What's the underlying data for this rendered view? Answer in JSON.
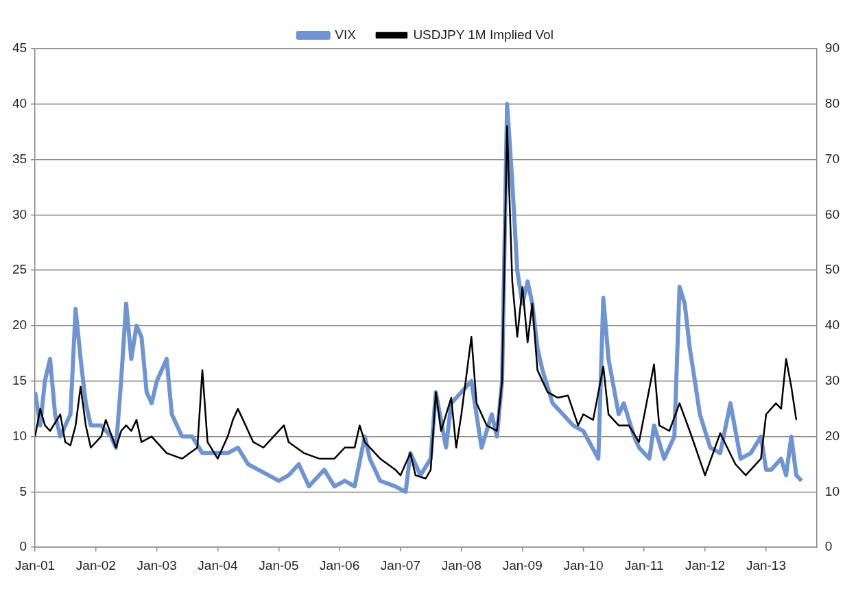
{
  "chart_data": {
    "type": "line",
    "legend": "top",
    "grid": "y",
    "line_style": "solid",
    "marker": "none",
    "xlim": [
      "2001-01",
      "2013-11"
    ],
    "xticks": [
      {
        "value": "2001-01",
        "label": "Jan-01"
      },
      {
        "value": "2002-01",
        "label": "Jan-02"
      },
      {
        "value": "2003-01",
        "label": "Jan-03"
      },
      {
        "value": "2004-01",
        "label": "Jan-04"
      },
      {
        "value": "2005-01",
        "label": "Jan-05"
      },
      {
        "value": "2006-01",
        "label": "Jan-06"
      },
      {
        "value": "2007-01",
        "label": "Jan-07"
      },
      {
        "value": "2008-01",
        "label": "Jan-08"
      },
      {
        "value": "2009-01",
        "label": "Jan-09"
      },
      {
        "value": "2010-01",
        "label": "Jan-10"
      },
      {
        "value": "2011-01",
        "label": "Jan-11"
      },
      {
        "value": "2012-01",
        "label": "Jan-12"
      },
      {
        "value": "2013-01",
        "label": "Jan-13"
      }
    ],
    "ylim": [
      0,
      45
    ],
    "yticks": [
      0,
      5,
      10,
      15,
      20,
      25,
      30,
      35,
      40,
      45
    ],
    "y2lim": [
      0,
      90
    ],
    "y2ticks": [
      0,
      10,
      20,
      30,
      40,
      50,
      60,
      70,
      80,
      90
    ],
    "series": [
      {
        "name": "VIX",
        "color": "#7094cf",
        "axis": "y2",
        "x": [
          "2001-01",
          "2001-02",
          "2001-03",
          "2001-04",
          "2001-05",
          "2001-06",
          "2001-08",
          "2001-09",
          "2001-10",
          "2001-11",
          "2001-12",
          "2002-02",
          "2002-04",
          "2002-05",
          "2002-06",
          "2002-07",
          "2002-08",
          "2002-09",
          "2002-10",
          "2002-11",
          "2002-12",
          "2003-01",
          "2003-03",
          "2003-04",
          "2003-06",
          "2003-08",
          "2003-10",
          "2003-12",
          "2004-03",
          "2004-05",
          "2004-07",
          "2004-09",
          "2004-11",
          "2005-01",
          "2005-03",
          "2005-05",
          "2005-07",
          "2005-10",
          "2005-12",
          "2006-02",
          "2006-04",
          "2006-06",
          "2006-07",
          "2006-09",
          "2006-12",
          "2007-02",
          "2007-03",
          "2007-05",
          "2007-07",
          "2007-08",
          "2007-10",
          "2007-11",
          "2008-01",
          "2008-03",
          "2008-05",
          "2008-07",
          "2008-08",
          "2008-09",
          "2008-10",
          "2008-11",
          "2008-12",
          "2009-01",
          "2009-02",
          "2009-03",
          "2009-04",
          "2009-05",
          "2009-07",
          "2009-09",
          "2009-11",
          "2010-01",
          "2010-04",
          "2010-05",
          "2010-06",
          "2010-08",
          "2010-09",
          "2010-11",
          "2010-12",
          "2011-02",
          "2011-03",
          "2011-05",
          "2011-07",
          "2011-08",
          "2011-09",
          "2011-10",
          "2011-11",
          "2011-12",
          "2012-02",
          "2012-04",
          "2012-06",
          "2012-08",
          "2012-10",
          "2012-12",
          "2013-01",
          "2013-02",
          "2013-04",
          "2013-05",
          "2013-06",
          "2013-07",
          "2013-08"
        ],
        "values": [
          28,
          22,
          30,
          34,
          24,
          20,
          24,
          43,
          34,
          26,
          22,
          22,
          20,
          18,
          30,
          44,
          34,
          40,
          38,
          28,
          26,
          30,
          34,
          24,
          20,
          20,
          17,
          17,
          17,
          18,
          15,
          14,
          13,
          12,
          13,
          15,
          11,
          14,
          11,
          12,
          11,
          20,
          16,
          12,
          11,
          10,
          17,
          13,
          16,
          28,
          18,
          26,
          28,
          30,
          18,
          24,
          20,
          30,
          80,
          66,
          50,
          44,
          48,
          44,
          36,
          32,
          26,
          24,
          22,
          21,
          16,
          45,
          34,
          24,
          26,
          20,
          18,
          16,
          22,
          16,
          20,
          47,
          44,
          36,
          30,
          24,
          18,
          17,
          26,
          16,
          17,
          20,
          14,
          14,
          16,
          13,
          20,
          13,
          12
        ]
      },
      {
        "name": "USDJPY 1M Implied Vol",
        "color": "#000000",
        "x": [
          "2001-01",
          "2001-02",
          "2001-03",
          "2001-04",
          "2001-06",
          "2001-07",
          "2001-08",
          "2001-09",
          "2001-10",
          "2001-11",
          "2001-12",
          "2002-02",
          "2002-03",
          "2002-05",
          "2002-06",
          "2002-07",
          "2002-08",
          "2002-09",
          "2002-10",
          "2002-12",
          "2003-03",
          "2003-06",
          "2003-09",
          "2003-10",
          "2003-11",
          "2004-01",
          "2004-03",
          "2004-04",
          "2004-05",
          "2004-06",
          "2004-08",
          "2004-10",
          "2004-12",
          "2005-02",
          "2005-03",
          "2005-06",
          "2005-09",
          "2005-12",
          "2006-02",
          "2006-04",
          "2006-05",
          "2006-06",
          "2006-09",
          "2006-12",
          "2007-01",
          "2007-03",
          "2007-04",
          "2007-06",
          "2007-07",
          "2007-08",
          "2007-09",
          "2007-11",
          "2007-12",
          "2008-01",
          "2008-03",
          "2008-04",
          "2008-06",
          "2008-08",
          "2008-09",
          "2008-10",
          "2008-11",
          "2008-12",
          "2009-01",
          "2009-02",
          "2009-03",
          "2009-04",
          "2009-06",
          "2009-08",
          "2009-10",
          "2009-12",
          "2010-01",
          "2010-03",
          "2010-05",
          "2010-06",
          "2010-08",
          "2010-10",
          "2010-12",
          "2011-03",
          "2011-04",
          "2011-06",
          "2011-08",
          "2011-10",
          "2012-01",
          "2012-04",
          "2012-07",
          "2012-09",
          "2012-12",
          "2013-01",
          "2013-03",
          "2013-04",
          "2013-05",
          "2013-06",
          "2013-07"
        ],
        "values": [
          10,
          12.5,
          11,
          10.5,
          12,
          9.5,
          9.2,
          11,
          14.5,
          11,
          9,
          10,
          11.5,
          9,
          10.5,
          11,
          10.5,
          11.5,
          9.5,
          10,
          8.5,
          8,
          9,
          16,
          9.5,
          8,
          10,
          11.5,
          12.5,
          11.5,
          9.5,
          9,
          10,
          11,
          9.5,
          8.5,
          8,
          8,
          9,
          9,
          11,
          9.5,
          8,
          7,
          6.5,
          8.5,
          6.5,
          6.2,
          7,
          14,
          10.5,
          13.5,
          9,
          12,
          19,
          13,
          11,
          10.5,
          15,
          38,
          24,
          19,
          23.5,
          18.5,
          22,
          16,
          14,
          13.5,
          13.7,
          11,
          12,
          11.5,
          16.3,
          12,
          11,
          11,
          9.5,
          16.5,
          11,
          10.5,
          13,
          10.5,
          6.5,
          10.3,
          7.5,
          6.5,
          8,
          12,
          13,
          12.5,
          17,
          14.5,
          11.5
        ]
      }
    ]
  }
}
